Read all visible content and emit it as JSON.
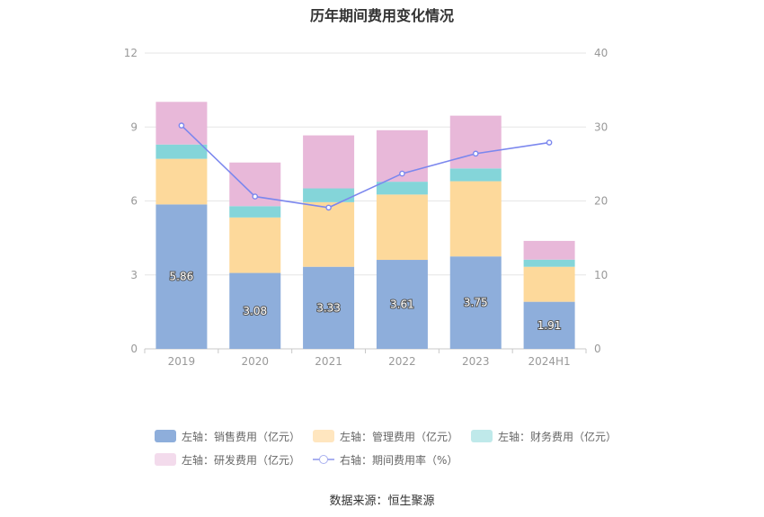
{
  "chart_data": {
    "type": "bar",
    "title": "历年期间费用变化情况",
    "categories": [
      "2019",
      "2020",
      "2021",
      "2022",
      "2023",
      "2024H1"
    ],
    "stacked": true,
    "left_axis": {
      "min": 0,
      "max": 12,
      "ticks": [
        "0",
        "3",
        "6",
        "9",
        "12"
      ]
    },
    "right_axis": {
      "min": 0,
      "max": 40,
      "ticks": [
        "0",
        "10",
        "20",
        "30",
        "40"
      ]
    },
    "series": [
      {
        "name": "左轴：销售费用（亿元）",
        "axis": "left",
        "type": "bar",
        "color": "#8eaedb",
        "values": [
          5.86,
          3.08,
          3.33,
          3.61,
          3.75,
          1.91
        ],
        "labels": [
          "5.86",
          "3.08",
          "3.33",
          "3.61",
          "3.75",
          "1.91"
        ]
      },
      {
        "name": "左轴：管理费用（亿元）",
        "axis": "left",
        "type": "bar",
        "color": "#fdd99b",
        "values": [
          1.85,
          2.25,
          2.62,
          2.65,
          3.05,
          1.42
        ]
      },
      {
        "name": "左轴：财务费用（亿元）",
        "axis": "left",
        "type": "bar",
        "color": "#84d5d9",
        "values": [
          0.58,
          0.46,
          0.56,
          0.52,
          0.52,
          0.29
        ]
      },
      {
        "name": "左轴：研发费用（亿元）",
        "axis": "left",
        "type": "bar",
        "color": "#e8b8d9",
        "values": [
          1.73,
          1.77,
          2.15,
          2.09,
          2.14,
          0.76
        ]
      },
      {
        "name": "右轴：期间费用率（%）",
        "axis": "right",
        "type": "line",
        "color": "#7b87ee",
        "values": [
          30.2,
          20.6,
          19.1,
          23.7,
          26.4,
          27.9
        ]
      }
    ],
    "legend_position": "bottom",
    "grid": true
  },
  "source": "数据来源：恒生聚源"
}
